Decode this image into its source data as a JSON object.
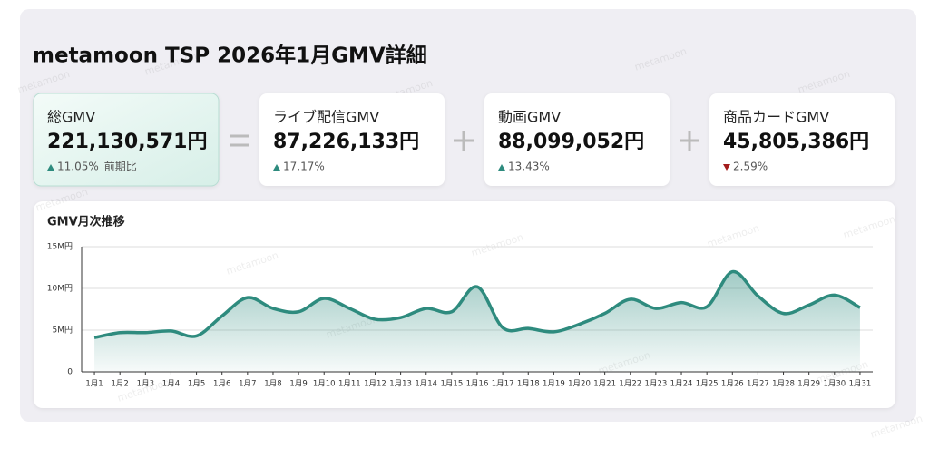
{
  "header": {
    "title": "metamoon TSP 2026年1月GMV詳細"
  },
  "watermark": "metamoon",
  "cards": [
    {
      "label": "総GMV",
      "value": "221,130,571円",
      "change": "11.05%",
      "note": "前期比",
      "trend": "up"
    },
    {
      "label": "ライブ配信GMV",
      "value": "87,226,133円",
      "change": "17.17%",
      "trend": "up"
    },
    {
      "label": "動画GMV",
      "value": "88,099,052円",
      "change": "13.43%",
      "trend": "up"
    },
    {
      "label": "商品カードGMV",
      "value": "45,805,386円",
      "change": "2.59%",
      "trend": "down"
    }
  ],
  "chart_data": {
    "type": "area",
    "title": "GMV月次推移",
    "color": "#2e8b7e",
    "categories": [
      "1月1",
      "1月2",
      "1月3",
      "1月4",
      "1月5",
      "1月6",
      "1月7",
      "1月8",
      "1月9",
      "1月10",
      "1月11",
      "1月12",
      "1月13",
      "1月14",
      "1月15",
      "1月16",
      "1月17",
      "1月18",
      "1月19",
      "1月20",
      "1月21",
      "1月22",
      "1月23",
      "1月24",
      "1月25",
      "1月26",
      "1月27",
      "1月28",
      "1月29",
      "1月30",
      "1月31"
    ],
    "values": [
      4.1,
      4.7,
      4.7,
      4.9,
      4.3,
      6.7,
      8.9,
      7.6,
      7.2,
      8.8,
      7.6,
      6.3,
      6.5,
      7.6,
      7.2,
      10.2,
      5.3,
      5.2,
      4.8,
      5.7,
      7.0,
      8.7,
      7.6,
      8.3,
      7.8,
      12.0,
      9.1,
      7.0,
      8.0,
      9.2,
      7.7
    ],
    "ylim": [
      0,
      15
    ],
    "yticks": [
      0,
      {
        "value": 5,
        "label": "5M円"
      },
      {
        "value": 10,
        "label": "10M円"
      },
      {
        "value": 15,
        "label": "15M円"
      }
    ],
    "grid": true
  }
}
